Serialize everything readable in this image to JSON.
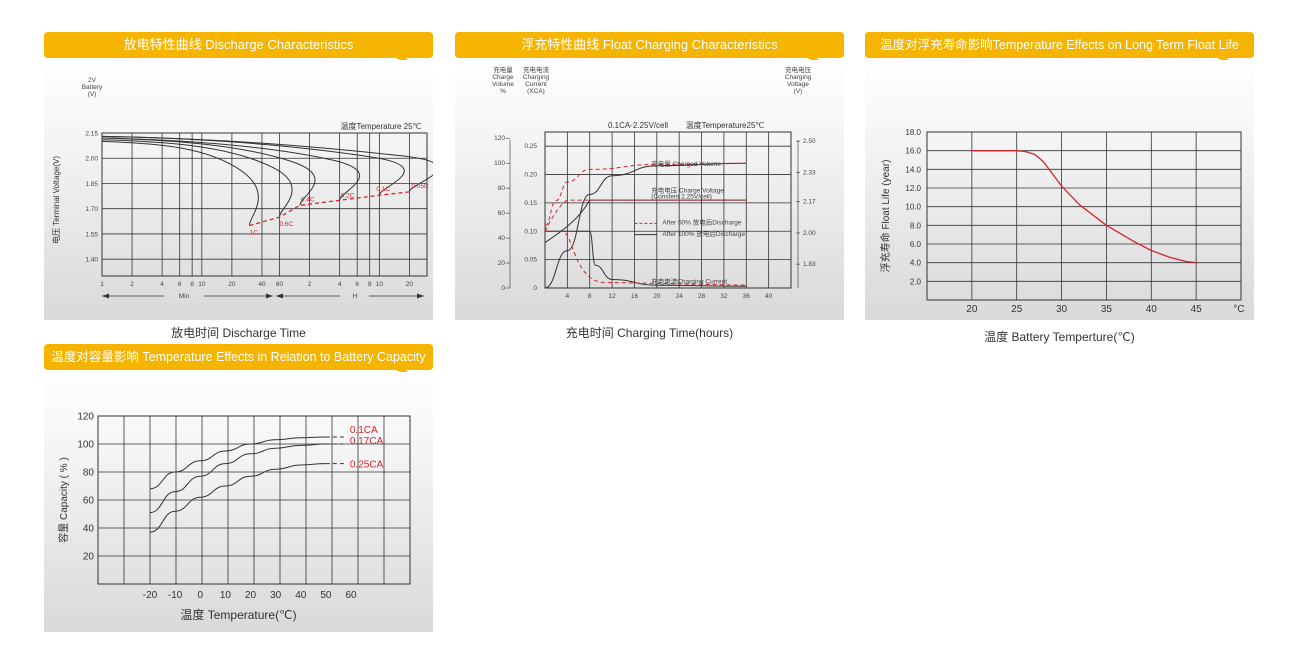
{
  "colors": {
    "header": "#f5b400",
    "red_curve": "#d9232d",
    "black_curve": "#333333"
  },
  "panels": {
    "discharge": {
      "header": "放电特性曲线 Discharge Characteristics"
    },
    "float_charging": {
      "header": "浮充特性曲线 Float Charging Characteristics"
    },
    "float_life": {
      "header": "温度对浮充寿命影响Temperature Effects on Long Term Float Life"
    },
    "capacity": {
      "header": "温度对容量影响 Temperature Effects in Relation to Battery Capacity"
    }
  },
  "chart_data": [
    {
      "type": "line",
      "title": "",
      "annotation": "温度Temperature 25℃",
      "ylabel": "电压 Terminal Voltage(V)",
      "ylabel_top": [
        "2V",
        "Battery",
        "(V)"
      ],
      "xlabel": "放电时间 Discharge Time",
      "x_unit_min": "Min",
      "x_unit_h": "H",
      "x_ticks": [
        "1",
        "2",
        "4",
        "6",
        "8",
        "10",
        "20",
        "40",
        "60",
        "2",
        "4",
        "6",
        "8",
        "10",
        "20"
      ],
      "y_ticks": [
        "2.15",
        "2.00",
        "1.85",
        "1.70",
        "1.55",
        "1.40"
      ],
      "ylim": [
        1.3,
        2.15
      ],
      "series": [
        {
          "name": "1C",
          "x_min": [
            1,
            30
          ],
          "y": [
            2.1,
            1.6
          ]
        },
        {
          "name": "0.6C",
          "x_min": [
            1,
            60
          ],
          "y": [
            2.11,
            1.65
          ]
        },
        {
          "name": "0.4C",
          "x_min": [
            1,
            96
          ],
          "y": [
            2.12,
            1.72
          ]
        },
        {
          "name": "0.2C",
          "x_min": [
            1,
            240
          ],
          "y": [
            2.12,
            1.75
          ]
        },
        {
          "name": "0.1C",
          "x_min": [
            1,
            600
          ],
          "y": [
            2.13,
            1.78
          ]
        },
        {
          "name": "0.05C",
          "x_min": [
            1,
            1200
          ],
          "y": [
            2.13,
            1.8
          ]
        }
      ],
      "series_labels": [
        "1C",
        "0.6C",
        "0.4C",
        "0.2C",
        "0.1C",
        "0.05C"
      ]
    },
    {
      "type": "line",
      "title": "0.1CA-2.25V/cell",
      "annotation": "温度Temperature25℃",
      "xlabel": "充电时间 Charging Time(hours)",
      "left_axis1_label": [
        "充电量",
        "Charge",
        "Volume",
        "%"
      ],
      "left_axis2_label": [
        "充电电流",
        "Charging",
        "Current",
        "(XCA)"
      ],
      "right_axis_label": [
        "充电电压",
        "Charging",
        "Voltage",
        "(V)"
      ],
      "x_ticks": [
        "4",
        "8",
        "12",
        "16",
        "20",
        "24",
        "28",
        "32",
        "36",
        "40"
      ],
      "volume_ticks": [
        "120",
        "100",
        "80",
        "60",
        "40",
        "20",
        "0"
      ],
      "current_ticks": [
        "0.25",
        "0.20",
        "0.15",
        "0.10",
        "0.05",
        "0"
      ],
      "voltage_ticks": [
        "2.50",
        "2.33",
        "2.17",
        "2.00",
        "1.83"
      ],
      "series_labels": {
        "charged_volume": "充电量 Charged Volume",
        "charge_voltage": "充电电压 Charge Voltage",
        "charge_voltage_sub": "(Constent 2.25V/cell)",
        "charging_current": "充电电流Charging Current"
      },
      "legend": [
        {
          "name": "After 50% 放电后Discharge",
          "style": "dashed-red"
        },
        {
          "name": "After 100% 放电后Discharge",
          "style": "solid-black"
        }
      ],
      "series": [
        {
          "name": "charged volume after 100%",
          "x": [
            0,
            4,
            8,
            12,
            20,
            36
          ],
          "y": [
            0,
            30,
            75,
            90,
            98,
            100
          ]
        },
        {
          "name": "charged volume after 50%",
          "x": [
            0,
            2,
            4,
            8,
            20,
            36
          ],
          "y": [
            50,
            70,
            85,
            95,
            99,
            100
          ]
        },
        {
          "name": "current after 100%",
          "x": [
            0,
            8,
            9,
            12,
            20,
            36
          ],
          "y": [
            0.1,
            0.1,
            0.04,
            0.015,
            0.005,
            0.003
          ]
        },
        {
          "name": "voltage after 100%",
          "x": [
            0,
            4,
            8,
            36
          ],
          "y": [
            2.0,
            2.07,
            2.25,
            2.25
          ]
        }
      ]
    },
    {
      "type": "line",
      "title": "",
      "ylabel": "浮充寿命  Float Life (year)",
      "xlabel": "温度  Battery  Temperture(℃)",
      "x_unit": "°C",
      "x_ticks": [
        "20",
        "25",
        "30",
        "35",
        "40",
        "45"
      ],
      "y_ticks": [
        "18.0",
        "16.0",
        "14.0",
        "12.0",
        "10.0",
        "8.0",
        "6.0",
        "4.0",
        "2.0"
      ],
      "xlim": [
        15,
        50
      ],
      "ylim": [
        0,
        18
      ],
      "series": [
        {
          "name": "",
          "x": [
            20,
            25,
            26,
            27,
            28,
            30,
            32,
            35,
            38,
            40,
            42,
            44,
            45
          ],
          "y": [
            16,
            16,
            15.9,
            15.6,
            14.8,
            12.2,
            10.2,
            8,
            6.3,
            5.3,
            4.6,
            4.1,
            4
          ]
        }
      ]
    },
    {
      "type": "line",
      "title": "",
      "ylabel": "容量 Capacity ( % )",
      "xlabel": "温度 Temperature(℃)",
      "x_ticks": [
        "-20",
        "-10",
        "0",
        "10",
        "20",
        "30",
        "40",
        "50",
        "60"
      ],
      "y_ticks": [
        "120",
        "100",
        "80",
        "60",
        "40",
        "20"
      ],
      "xlim": [
        -30,
        70
      ],
      "ylim": [
        0,
        120
      ],
      "series": [
        {
          "name": "0.1CA",
          "x": [
            -20,
            -10,
            0,
            10,
            20,
            30,
            40,
            50
          ],
          "y": [
            68,
            80,
            88,
            95,
            100,
            103,
            104.5,
            105
          ]
        },
        {
          "name": "0.17CA",
          "x": [
            -20,
            -10,
            0,
            10,
            20,
            30,
            40,
            50
          ],
          "y": [
            51,
            66,
            77,
            86,
            93,
            97,
            99,
            100
          ]
        },
        {
          "name": "0.25CA",
          "x": [
            -20,
            -10,
            0,
            10,
            20,
            30,
            40,
            50
          ],
          "y": [
            37,
            52,
            62,
            70,
            77,
            82,
            85,
            86
          ]
        }
      ]
    }
  ]
}
